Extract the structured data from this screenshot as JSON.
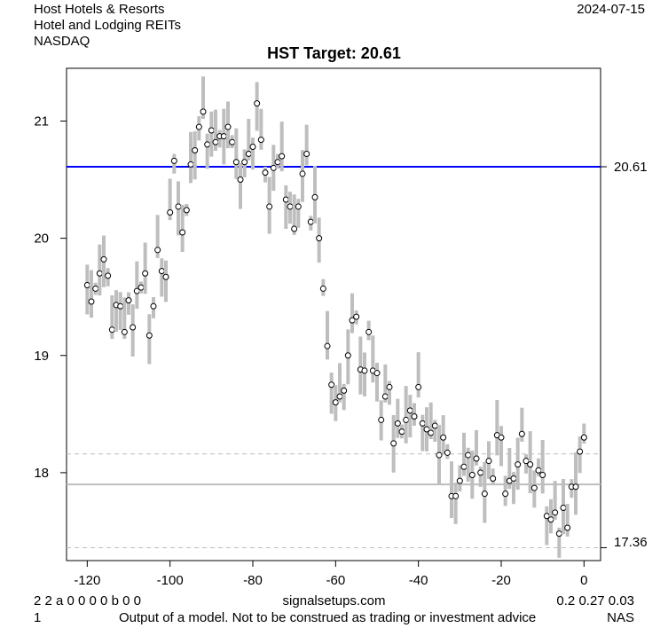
{
  "header": {
    "line1": "Host Hotels & Resorts",
    "line2": "Hotel and Lodging REITs",
    "line3": "NASDAQ",
    "date": "2024-07-15"
  },
  "footer": {
    "codes": "2 2 a 0 0 0 0 b 0 0",
    "site": "signalsetups.com",
    "stats": "0.2 0.27 0.03",
    "page": "1",
    "disclaimer": "Output of a model. Not to be construed as trading or investment advice",
    "exchange": "NAS"
  },
  "chart_data": {
    "type": "line",
    "title": "HST Target: 20.61",
    "xlim": [
      -125,
      4
    ],
    "ylim": [
      17.25,
      21.45
    ],
    "xticks": [
      -120,
      -100,
      -80,
      -60,
      -40,
      -20,
      0
    ],
    "yticks": [
      18,
      19,
      20,
      21
    ],
    "colors": {
      "target": "#0000ff",
      "bars": "#bebebe",
      "reference": "#bebebe"
    },
    "hlines": [
      {
        "value": 20.61,
        "label": "20.61",
        "style": "solid",
        "color": "#0000ff"
      },
      {
        "value": 18.16,
        "style": "dashed"
      },
      {
        "value": 17.9,
        "style": "solid"
      },
      {
        "value": 17.36,
        "label": "17.36",
        "style": "dashed"
      }
    ],
    "close": [
      19.6,
      19.46,
      19.57,
      19.7,
      19.82,
      19.68,
      19.22,
      19.43,
      19.42,
      19.2,
      19.47,
      19.24,
      19.55,
      19.58,
      19.7,
      19.17,
      19.42,
      19.9,
      19.72,
      19.67,
      20.22,
      20.66,
      20.27,
      20.05,
      20.24,
      20.63,
      20.75,
      20.95,
      21.08,
      20.8,
      20.92,
      20.82,
      20.87,
      20.87,
      20.95,
      20.82,
      20.65,
      20.5,
      20.65,
      20.72,
      20.78,
      21.15,
      20.84,
      20.56,
      20.27,
      20.6,
      20.65,
      20.7,
      20.33,
      20.27,
      20.08,
      20.27,
      20.55,
      20.72,
      20.14,
      20.35,
      20.0,
      19.57,
      19.08,
      18.75,
      18.6,
      18.65,
      18.7,
      19.0,
      19.3,
      19.33,
      18.88,
      18.87,
      19.2,
      18.87,
      18.85,
      18.45,
      18.65,
      18.73,
      18.25,
      18.42,
      18.35,
      18.45,
      18.53,
      18.48,
      18.73,
      18.42,
      18.37,
      18.34,
      18.4,
      18.15,
      18.3,
      18.17,
      17.8,
      17.8,
      17.93,
      18.05,
      18.15,
      17.98,
      18.12,
      18.0,
      17.82,
      18.1,
      17.95,
      18.32,
      18.3,
      17.82,
      17.93,
      17.95,
      18.07,
      18.33,
      18.1,
      18.07,
      17.87,
      18.02,
      17.98,
      17.63,
      17.6,
      17.66,
      17.48,
      17.7,
      17.53,
      17.88,
      17.88,
      18.18,
      18.3
    ]
  }
}
